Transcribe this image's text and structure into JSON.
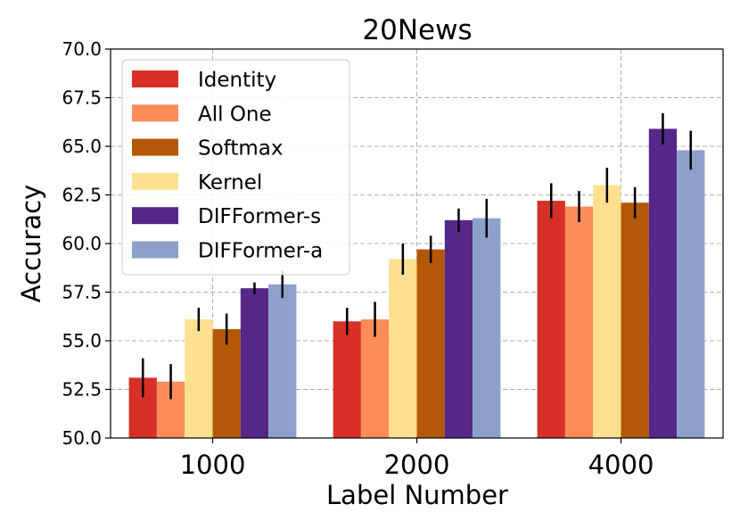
{
  "chart_data": {
    "type": "bar",
    "title": "20News",
    "xlabel": "Label Number",
    "ylabel": "Accuracy",
    "categories": [
      "1000",
      "2000",
      "4000"
    ],
    "ylim": [
      50.0,
      70.0
    ],
    "yticks": [
      "50.0",
      "52.5",
      "55.0",
      "57.5",
      "60.0",
      "62.5",
      "65.0",
      "67.5",
      "70.0"
    ],
    "grid": true,
    "legend_position": "top-left",
    "series": [
      {
        "name": "Identity",
        "color": "#d73027",
        "values": [
          53.1,
          56.0,
          62.2
        ],
        "errors": [
          1.0,
          0.7,
          0.9
        ]
      },
      {
        "name": "All One",
        "color": "#fc8d59",
        "values": [
          52.9,
          56.1,
          61.9
        ],
        "errors": [
          0.9,
          0.9,
          0.8
        ]
      },
      {
        "name": "Softmax",
        "color": "#b35806",
        "values": [
          55.6,
          59.7,
          62.1
        ],
        "errors": [
          0.8,
          0.7,
          0.8
        ]
      },
      {
        "name": "Kernel",
        "color": "#fee090",
        "values": [
          56.1,
          59.2,
          63.0
        ],
        "errors": [
          0.6,
          0.8,
          0.9
        ]
      },
      {
        "name": "DIFFormer-s",
        "color": "#542788",
        "values": [
          57.7,
          61.2,
          65.9
        ],
        "errors": [
          0.3,
          0.6,
          0.8
        ]
      },
      {
        "name": "DIFFormer-a",
        "color": "#8da0cb",
        "values": [
          57.9,
          61.3,
          64.8
        ],
        "errors": [
          0.7,
          1.0,
          1.0
        ]
      }
    ],
    "draw_order": [
      "Identity",
      "All One",
      "Kernel",
      "Softmax",
      "DIFFormer-s",
      "DIFFormer-a"
    ]
  }
}
